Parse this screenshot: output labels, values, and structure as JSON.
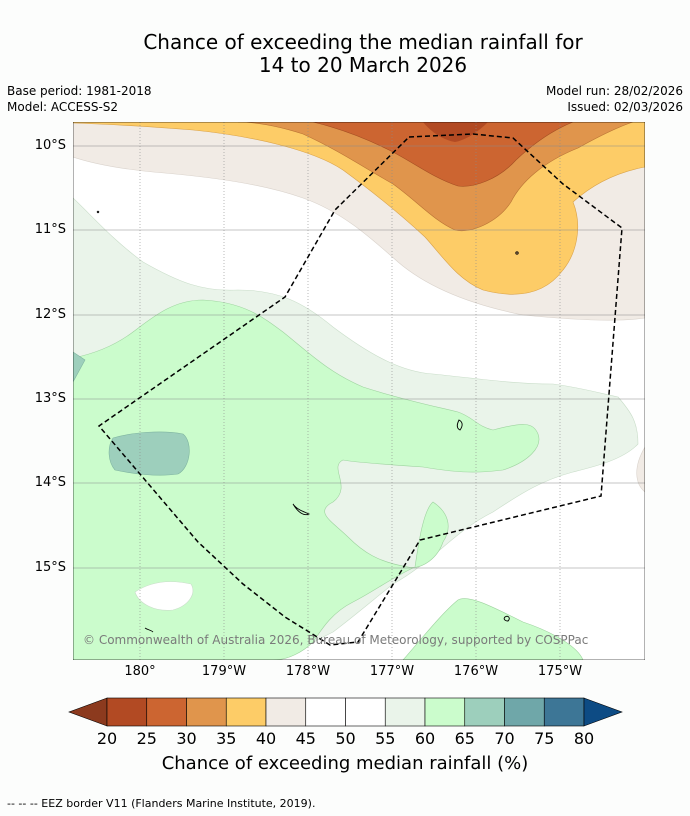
{
  "header": {
    "title_line1": "Chance of exceeding the median rainfall for",
    "title_line2": "14 to 20 March 2026",
    "base_period": "Base period: 1981-2018",
    "model": "Model: ACCESS-S2",
    "model_run": "Model run: 28/02/2026",
    "issued": "Issued: 02/03/2026"
  },
  "axes": {
    "lat_labels": [
      "10°S",
      "11°S",
      "12°S",
      "13°S",
      "14°S",
      "15°S"
    ],
    "lon_labels": [
      "180°",
      "179°W",
      "178°W",
      "177°W",
      "176°W",
      "175°W"
    ]
  },
  "copyright": "© Commonwealth of Australia 2026, Bureau of Meteorology, supported by COSPPac",
  "colorbar": {
    "ticks": [
      "20",
      "25",
      "30",
      "35",
      "40",
      "45",
      "50",
      "55",
      "60",
      "65",
      "70",
      "75",
      "80"
    ],
    "colors": [
      "#b24a23",
      "#cc6531",
      "#e0954c",
      "#fdcc67",
      "#f1ebe5",
      "#ffffff",
      "#ffffff",
      "#eaf4ea",
      "#cbfccc",
      "#9dcfbc",
      "#6fa7a9",
      "#3d7696"
    ],
    "under_color": "#8c3a1e",
    "over_color": "#0d4b84",
    "label": "Chance of exceeding median rainfall (%)"
  },
  "footnote": "--  --  -- EEZ border V11 (Flanders Marine Institute, 2019)."
}
